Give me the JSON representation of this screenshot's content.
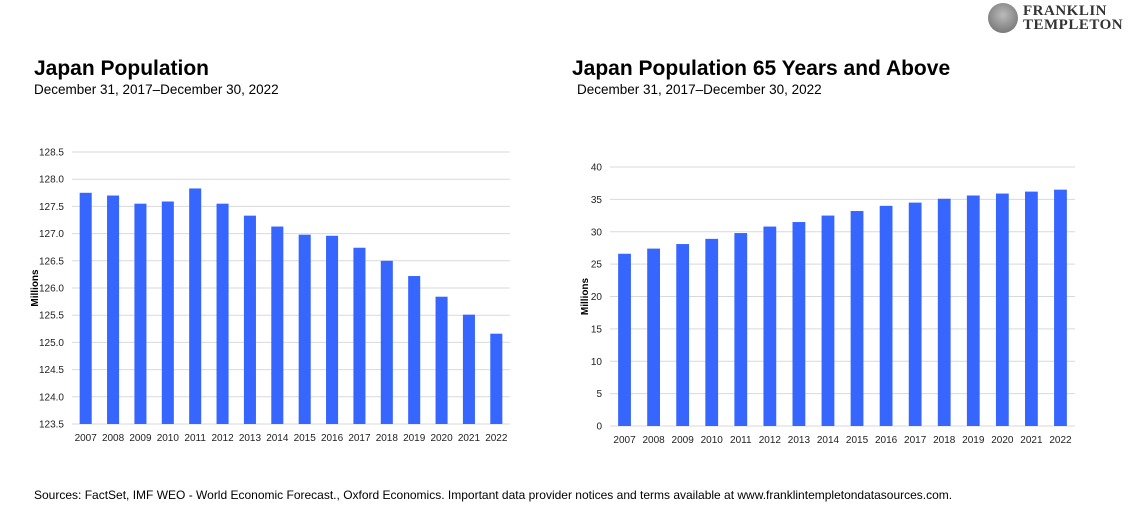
{
  "logo": {
    "line1": "FRANKLIN",
    "line2": "TEMPLETON"
  },
  "source": "Sources: FactSet, IMF WEO - World Economic Forecast., Oxford Economics. Important data provider notices and terms available at www.franklintempletondatasources.com.",
  "colors": {
    "bar": "#3766FF",
    "grid": "#D9D9D9"
  },
  "chart_data": [
    {
      "type": "bar",
      "title": "Japan Population",
      "subtitle": "December 31, 2017–December 30, 2022",
      "xlabel": "",
      "ylabel": "Millions",
      "ylim": [
        123.5,
        128.5
      ],
      "yticks": [
        "123.5",
        "124.0",
        "124.5",
        "125.0",
        "125.5",
        "126.0",
        "126.5",
        "127.0",
        "127.5",
        "128.0",
        "128.5"
      ],
      "grid": true,
      "categories": [
        "2007",
        "2008",
        "2009",
        "2010",
        "2011",
        "2012",
        "2013",
        "2014",
        "2015",
        "2016",
        "2017",
        "2018",
        "2019",
        "2020",
        "2021",
        "2022"
      ],
      "values": [
        127.75,
        127.7,
        127.55,
        127.59,
        127.83,
        127.55,
        127.33,
        127.13,
        126.98,
        126.96,
        126.74,
        126.5,
        126.22,
        125.84,
        125.51,
        125.16
      ]
    },
    {
      "type": "bar",
      "title": "Japan Population 65 Years and Above",
      "subtitle": "December 31, 2017–December 30, 2022",
      "xlabel": "",
      "ylabel": "Millions",
      "ylim": [
        0,
        40
      ],
      "yticks": [
        "0",
        "5",
        "10",
        "15",
        "20",
        "25",
        "30",
        "35",
        "40"
      ],
      "grid": true,
      "categories": [
        "2007",
        "2008",
        "2009",
        "2010",
        "2011",
        "2012",
        "2013",
        "2014",
        "2015",
        "2016",
        "2017",
        "2018",
        "2019",
        "2020",
        "2021",
        "2022"
      ],
      "values": [
        26.6,
        27.4,
        28.1,
        28.9,
        29.8,
        30.8,
        31.5,
        32.5,
        33.2,
        34.0,
        34.5,
        35.1,
        35.6,
        35.9,
        36.2,
        36.5
      ]
    }
  ]
}
